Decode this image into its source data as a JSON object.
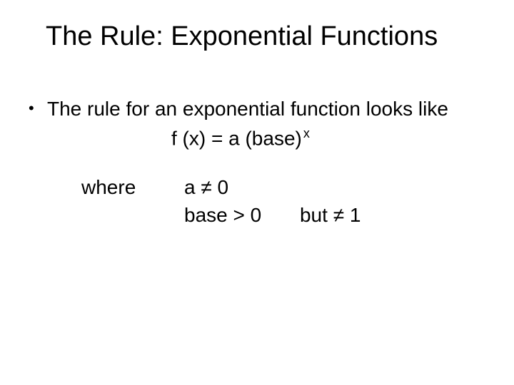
{
  "colors": {
    "background": "#ffffff",
    "text": "#000000"
  },
  "typography": {
    "title_fontsize_pt": 38,
    "body_fontsize_pt": 28,
    "superscript_fontsize_pt": 18,
    "font_family": "Arial"
  },
  "slide": {
    "title": "The Rule: Exponential Functions",
    "bullet": {
      "marker": "•",
      "text": "The rule for an exponential function looks like"
    },
    "formula": {
      "lhs": "f (x) = a (base)",
      "exponent": "x"
    },
    "conditions": {
      "where_label": "where",
      "line1": "a ≠ 0",
      "line2_left": "base > 0",
      "line2_right": "but ≠ 1"
    }
  }
}
